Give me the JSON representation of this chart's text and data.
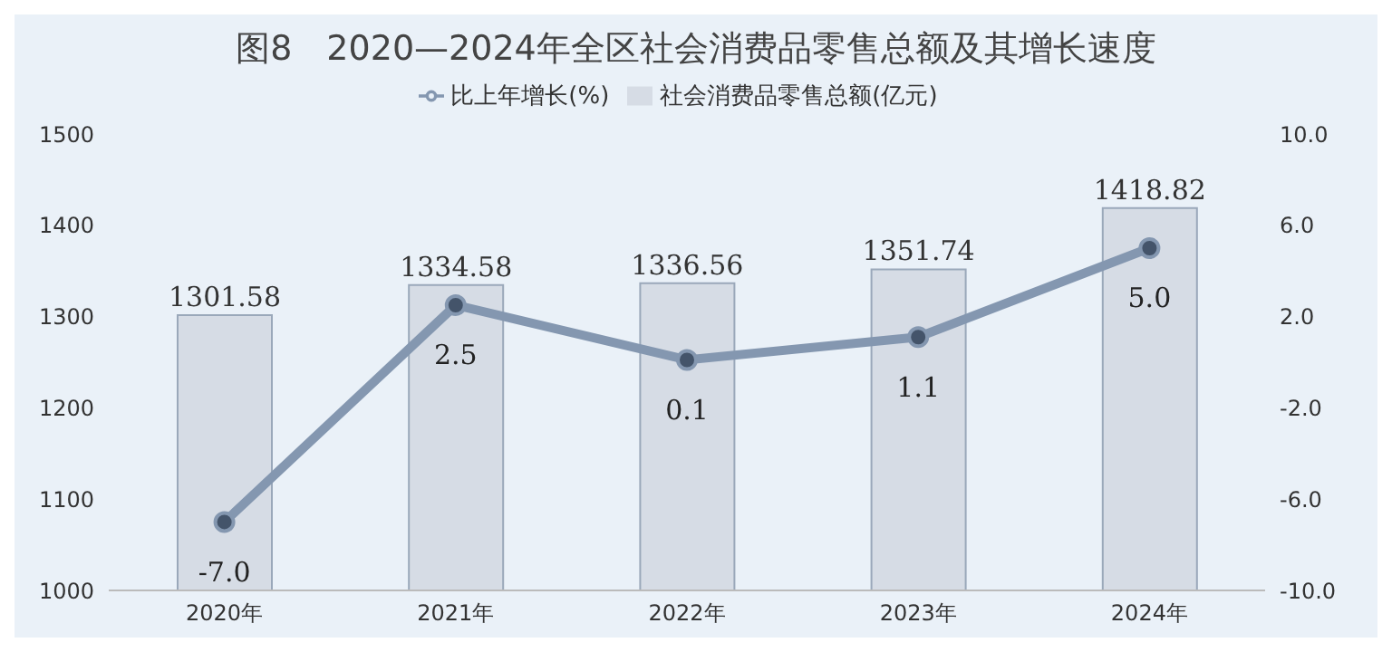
{
  "chart_data": {
    "type": "bar",
    "title": "图8　2020—2024年全区社会消费品零售总额及其增长速度",
    "categories": [
      "2020年",
      "2021年",
      "2022年",
      "2023年",
      "2024年"
    ],
    "series": [
      {
        "name": "社会消费品零售总额(亿元)",
        "color": "#d6dce5",
        "values": [
          1301.58,
          1334.58,
          1336.56,
          1351.74,
          1418.82
        ],
        "value_labels": [
          "1301.58",
          "1334.58",
          "1336.56",
          "1351.74",
          "1418.82"
        ]
      },
      {
        "name": "比上年增长(%)",
        "type": "line",
        "axis": "y2",
        "color": "#8497b0",
        "values": [
          -7.0,
          2.5,
          0.1,
          1.1,
          5.0
        ],
        "value_labels": [
          "-7.0",
          "2.5",
          "0.1",
          "1.1",
          "5.0"
        ]
      }
    ],
    "ylim": [
      1000,
      1500
    ],
    "yticks": [
      1000,
      1100,
      1200,
      1300,
      1400,
      1500
    ],
    "y2lim": [
      -10,
      10
    ],
    "y2ticks": [
      {
        "value": -10,
        "label": "-10.0"
      },
      {
        "value": -6,
        "label": "-6.0"
      },
      {
        "value": -2,
        "label": "-2.0"
      },
      {
        "value": 2,
        "label": "2.0"
      },
      {
        "value": 6,
        "label": "6.0"
      },
      {
        "value": 10,
        "label": "10.0"
      }
    ],
    "grid": false,
    "legend": "top",
    "marker": "circle",
    "line_style": "solid"
  }
}
